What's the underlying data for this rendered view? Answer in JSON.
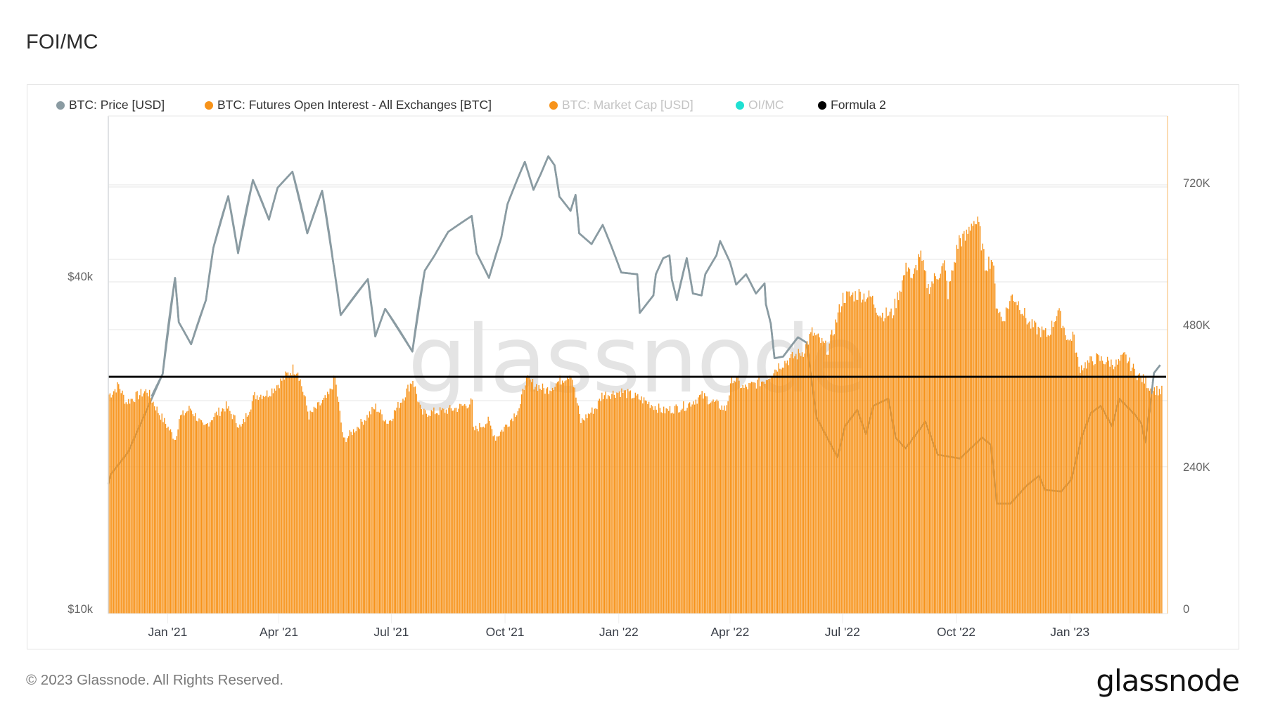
{
  "title": "FOI/MC",
  "footer": {
    "copyright": "© 2023 Glassnode. All Rights Reserved.",
    "logo_text": "glassnode"
  },
  "watermark": "glassnode",
  "legend": [
    {
      "label": "BTC: Price [USD]",
      "color": "#8A9BA2",
      "muted": false
    },
    {
      "label": "BTC: Futures Open Interest - All Exchanges [BTC]",
      "color": "#F7931A",
      "muted": false
    },
    {
      "label": "BTC: Market Cap [USD]",
      "color": "#F7931A",
      "muted": true
    },
    {
      "label": "OI/MC",
      "color": "#1FE0D2",
      "muted": true
    },
    {
      "label": "Formula 2",
      "color": "#000000",
      "muted": false
    }
  ],
  "colors": {
    "price_line": "#8A9BA2",
    "oi_bars": "#F7931A",
    "formula_line": "#000000",
    "grid": "#EEEEEE",
    "right_axis": "#F9C98A"
  },
  "chart_data": {
    "type": "bar",
    "title": "FOI/MC",
    "xlabel": "",
    "x_domain_days": [
      0,
      857
    ],
    "x_domain_dates": [
      "2020-11-14",
      "2023-03-22"
    ],
    "x_ticks": [
      {
        "label": "Jan '21",
        "day": 48
      },
      {
        "label": "Apr '21",
        "day": 138
      },
      {
        "label": "Jul '21",
        "day": 229
      },
      {
        "label": "Oct '21",
        "day": 321
      },
      {
        "label": "Jan '22",
        "day": 413
      },
      {
        "label": "Apr '22",
        "day": 503
      },
      {
        "label": "Jul '22",
        "day": 594
      },
      {
        "label": "Oct '22",
        "day": 686
      },
      {
        "label": "Jan '23",
        "day": 778
      }
    ],
    "left_axis": {
      "label": "BTC: Price [USD]",
      "scale": "log",
      "range": [
        10000,
        78000
      ],
      "ticks": [
        {
          "label": "$10k",
          "value": 10000
        },
        {
          "label": "$40k",
          "value": 40000
        }
      ]
    },
    "right_axis": {
      "label": "BTC: Futures Open Interest [BTC]",
      "scale": "linear",
      "range": [
        0,
        833000
      ],
      "ticks": [
        {
          "label": "0",
          "value": 0
        },
        {
          "label": "240K",
          "value": 240000
        },
        {
          "label": "480K",
          "value": 480000
        },
        {
          "label": "720K",
          "value": 720000
        }
      ]
    },
    "grid": true,
    "legend_position": "top-left",
    "series": [
      {
        "name": "BTC: Futures Open Interest - All Exchanges [BTC]",
        "type": "bar",
        "axis": "right",
        "unit": "BTC",
        "points_day_value": [
          [
            0,
            362000
          ],
          [
            2,
            364000
          ],
          [
            8,
            378000
          ],
          [
            14,
            349000
          ],
          [
            31,
            369000
          ],
          [
            40,
            333000
          ],
          [
            54,
            286000
          ],
          [
            57,
            322000
          ],
          [
            66,
            339000
          ],
          [
            77,
            305000
          ],
          [
            85,
            326000
          ],
          [
            95,
            342000
          ],
          [
            107,
            305000
          ],
          [
            118,
            360000
          ],
          [
            129,
            364000
          ],
          [
            137,
            380000
          ],
          [
            149,
            405000
          ],
          [
            153,
            403000
          ],
          [
            162,
            326000
          ],
          [
            178,
            360000
          ],
          [
            183,
            391000
          ],
          [
            190,
            284000
          ],
          [
            202,
            309000
          ],
          [
            216,
            341000
          ],
          [
            226,
            314000
          ],
          [
            240,
            364000
          ],
          [
            246,
            388000
          ],
          [
            253,
            330000
          ],
          [
            270,
            334000
          ],
          [
            282,
            339000
          ],
          [
            294,
            349000
          ],
          [
            295,
            301000
          ],
          [
            307,
            317000
          ],
          [
            313,
            289000
          ],
          [
            324,
            316000
          ],
          [
            333,
            343000
          ],
          [
            337,
            387000
          ],
          [
            354,
            369000
          ],
          [
            374,
            399000
          ],
          [
            382,
            316000
          ],
          [
            395,
            342000
          ],
          [
            399,
            361000
          ],
          [
            415,
            367000
          ],
          [
            433,
            352000
          ],
          [
            449,
            334000
          ],
          [
            467,
            343000
          ],
          [
            480,
            360000
          ],
          [
            499,
            337000
          ],
          [
            505,
            391000
          ],
          [
            514,
            372000
          ],
          [
            531,
            387000
          ],
          [
            542,
            411000
          ],
          [
            562,
            435000
          ],
          [
            569,
            467000
          ],
          [
            582,
            438000
          ],
          [
            594,
            526000
          ],
          [
            607,
            532000
          ],
          [
            617,
            526000
          ],
          [
            624,
            498000
          ],
          [
            634,
            498000
          ],
          [
            639,
            533000
          ],
          [
            647,
            586000
          ],
          [
            650,
            550000
          ],
          [
            656,
            601000
          ],
          [
            663,
            542000
          ],
          [
            676,
            581000
          ],
          [
            679,
            533000
          ],
          [
            688,
            625000
          ],
          [
            693,
            625000
          ],
          [
            699,
            658000
          ],
          [
            704,
            646000
          ],
          [
            709,
            581000
          ],
          [
            715,
            592000
          ],
          [
            718,
            518000
          ],
          [
            723,
            486000
          ],
          [
            731,
            530000
          ],
          [
            737,
            514000
          ],
          [
            745,
            480000
          ],
          [
            760,
            462000
          ],
          [
            768,
            504000
          ],
          [
            777,
            450000
          ],
          [
            780,
            465000
          ],
          [
            785,
            407000
          ],
          [
            799,
            423000
          ],
          [
            816,
            413000
          ],
          [
            822,
            427000
          ],
          [
            832,
            396000
          ],
          [
            839,
            384000
          ],
          [
            843,
            372000
          ],
          [
            851,
            368000
          ]
        ]
      },
      {
        "name": "BTC: Price [USD]",
        "type": "line",
        "axis": "left",
        "unit": "USD",
        "points_day_value": [
          [
            0,
            16800
          ],
          [
            2,
            17500
          ],
          [
            16,
            19200
          ],
          [
            44,
            26600
          ],
          [
            54,
            39700
          ],
          [
            57,
            33000
          ],
          [
            67,
            30100
          ],
          [
            79,
            36200
          ],
          [
            85,
            45000
          ],
          [
            97,
            55800
          ],
          [
            105,
            44000
          ],
          [
            117,
            59700
          ],
          [
            130,
            50600
          ],
          [
            137,
            57800
          ],
          [
            149,
            61800
          ],
          [
            161,
            47800
          ],
          [
            173,
            57100
          ],
          [
            182,
            42300
          ],
          [
            188,
            34000
          ],
          [
            210,
            39500
          ],
          [
            216,
            31100
          ],
          [
            224,
            34900
          ],
          [
            246,
            29200
          ],
          [
            256,
            40900
          ],
          [
            264,
            43600
          ],
          [
            275,
            48100
          ],
          [
            294,
            51400
          ],
          [
            298,
            44000
          ],
          [
            308,
            39700
          ],
          [
            318,
            47000
          ],
          [
            323,
            54000
          ],
          [
            331,
            59900
          ],
          [
            337,
            64400
          ],
          [
            344,
            57300
          ],
          [
            350,
            61300
          ],
          [
            356,
            65900
          ],
          [
            361,
            63500
          ],
          [
            365,
            55700
          ],
          [
            374,
            52500
          ],
          [
            378,
            56100
          ],
          [
            381,
            47800
          ],
          [
            391,
            45700
          ],
          [
            400,
            49500
          ],
          [
            407,
            45300
          ],
          [
            415,
            40600
          ],
          [
            428,
            40300
          ],
          [
            430,
            34300
          ],
          [
            441,
            36900
          ],
          [
            443,
            40300
          ],
          [
            449,
            43100
          ],
          [
            454,
            43600
          ],
          [
            456,
            39400
          ],
          [
            460,
            36200
          ],
          [
            468,
            43100
          ],
          [
            473,
            37200
          ],
          [
            480,
            36900
          ],
          [
            483,
            40300
          ],
          [
            492,
            43600
          ],
          [
            495,
            46300
          ],
          [
            503,
            42400
          ],
          [
            508,
            38600
          ],
          [
            516,
            40300
          ],
          [
            524,
            37200
          ],
          [
            531,
            38800
          ],
          [
            532,
            35600
          ],
          [
            536,
            32800
          ],
          [
            539,
            28400
          ],
          [
            546,
            28600
          ],
          [
            558,
            31000
          ],
          [
            565,
            30300
          ],
          [
            573,
            22200
          ],
          [
            590,
            18800
          ],
          [
            596,
            21400
          ],
          [
            606,
            22900
          ],
          [
            613,
            20700
          ],
          [
            619,
            23300
          ],
          [
            631,
            24000
          ],
          [
            637,
            20400
          ],
          [
            645,
            19500
          ],
          [
            661,
            21800
          ],
          [
            671,
            19000
          ],
          [
            689,
            18700
          ],
          [
            707,
            20400
          ],
          [
            714,
            19800
          ],
          [
            719,
            15500
          ],
          [
            730,
            15500
          ],
          [
            743,
            16700
          ],
          [
            753,
            17400
          ],
          [
            758,
            16400
          ],
          [
            771,
            16300
          ],
          [
            779,
            17100
          ],
          [
            788,
            20600
          ],
          [
            795,
            22600
          ],
          [
            803,
            23300
          ],
          [
            812,
            21400
          ],
          [
            818,
            24000
          ],
          [
            831,
            22400
          ],
          [
            836,
            21600
          ],
          [
            839,
            20000
          ],
          [
            843,
            23400
          ],
          [
            846,
            26700
          ],
          [
            851,
            27600
          ]
        ]
      },
      {
        "name": "Formula 2",
        "type": "line",
        "axis": "right",
        "constant_value": 392000
      }
    ]
  }
}
